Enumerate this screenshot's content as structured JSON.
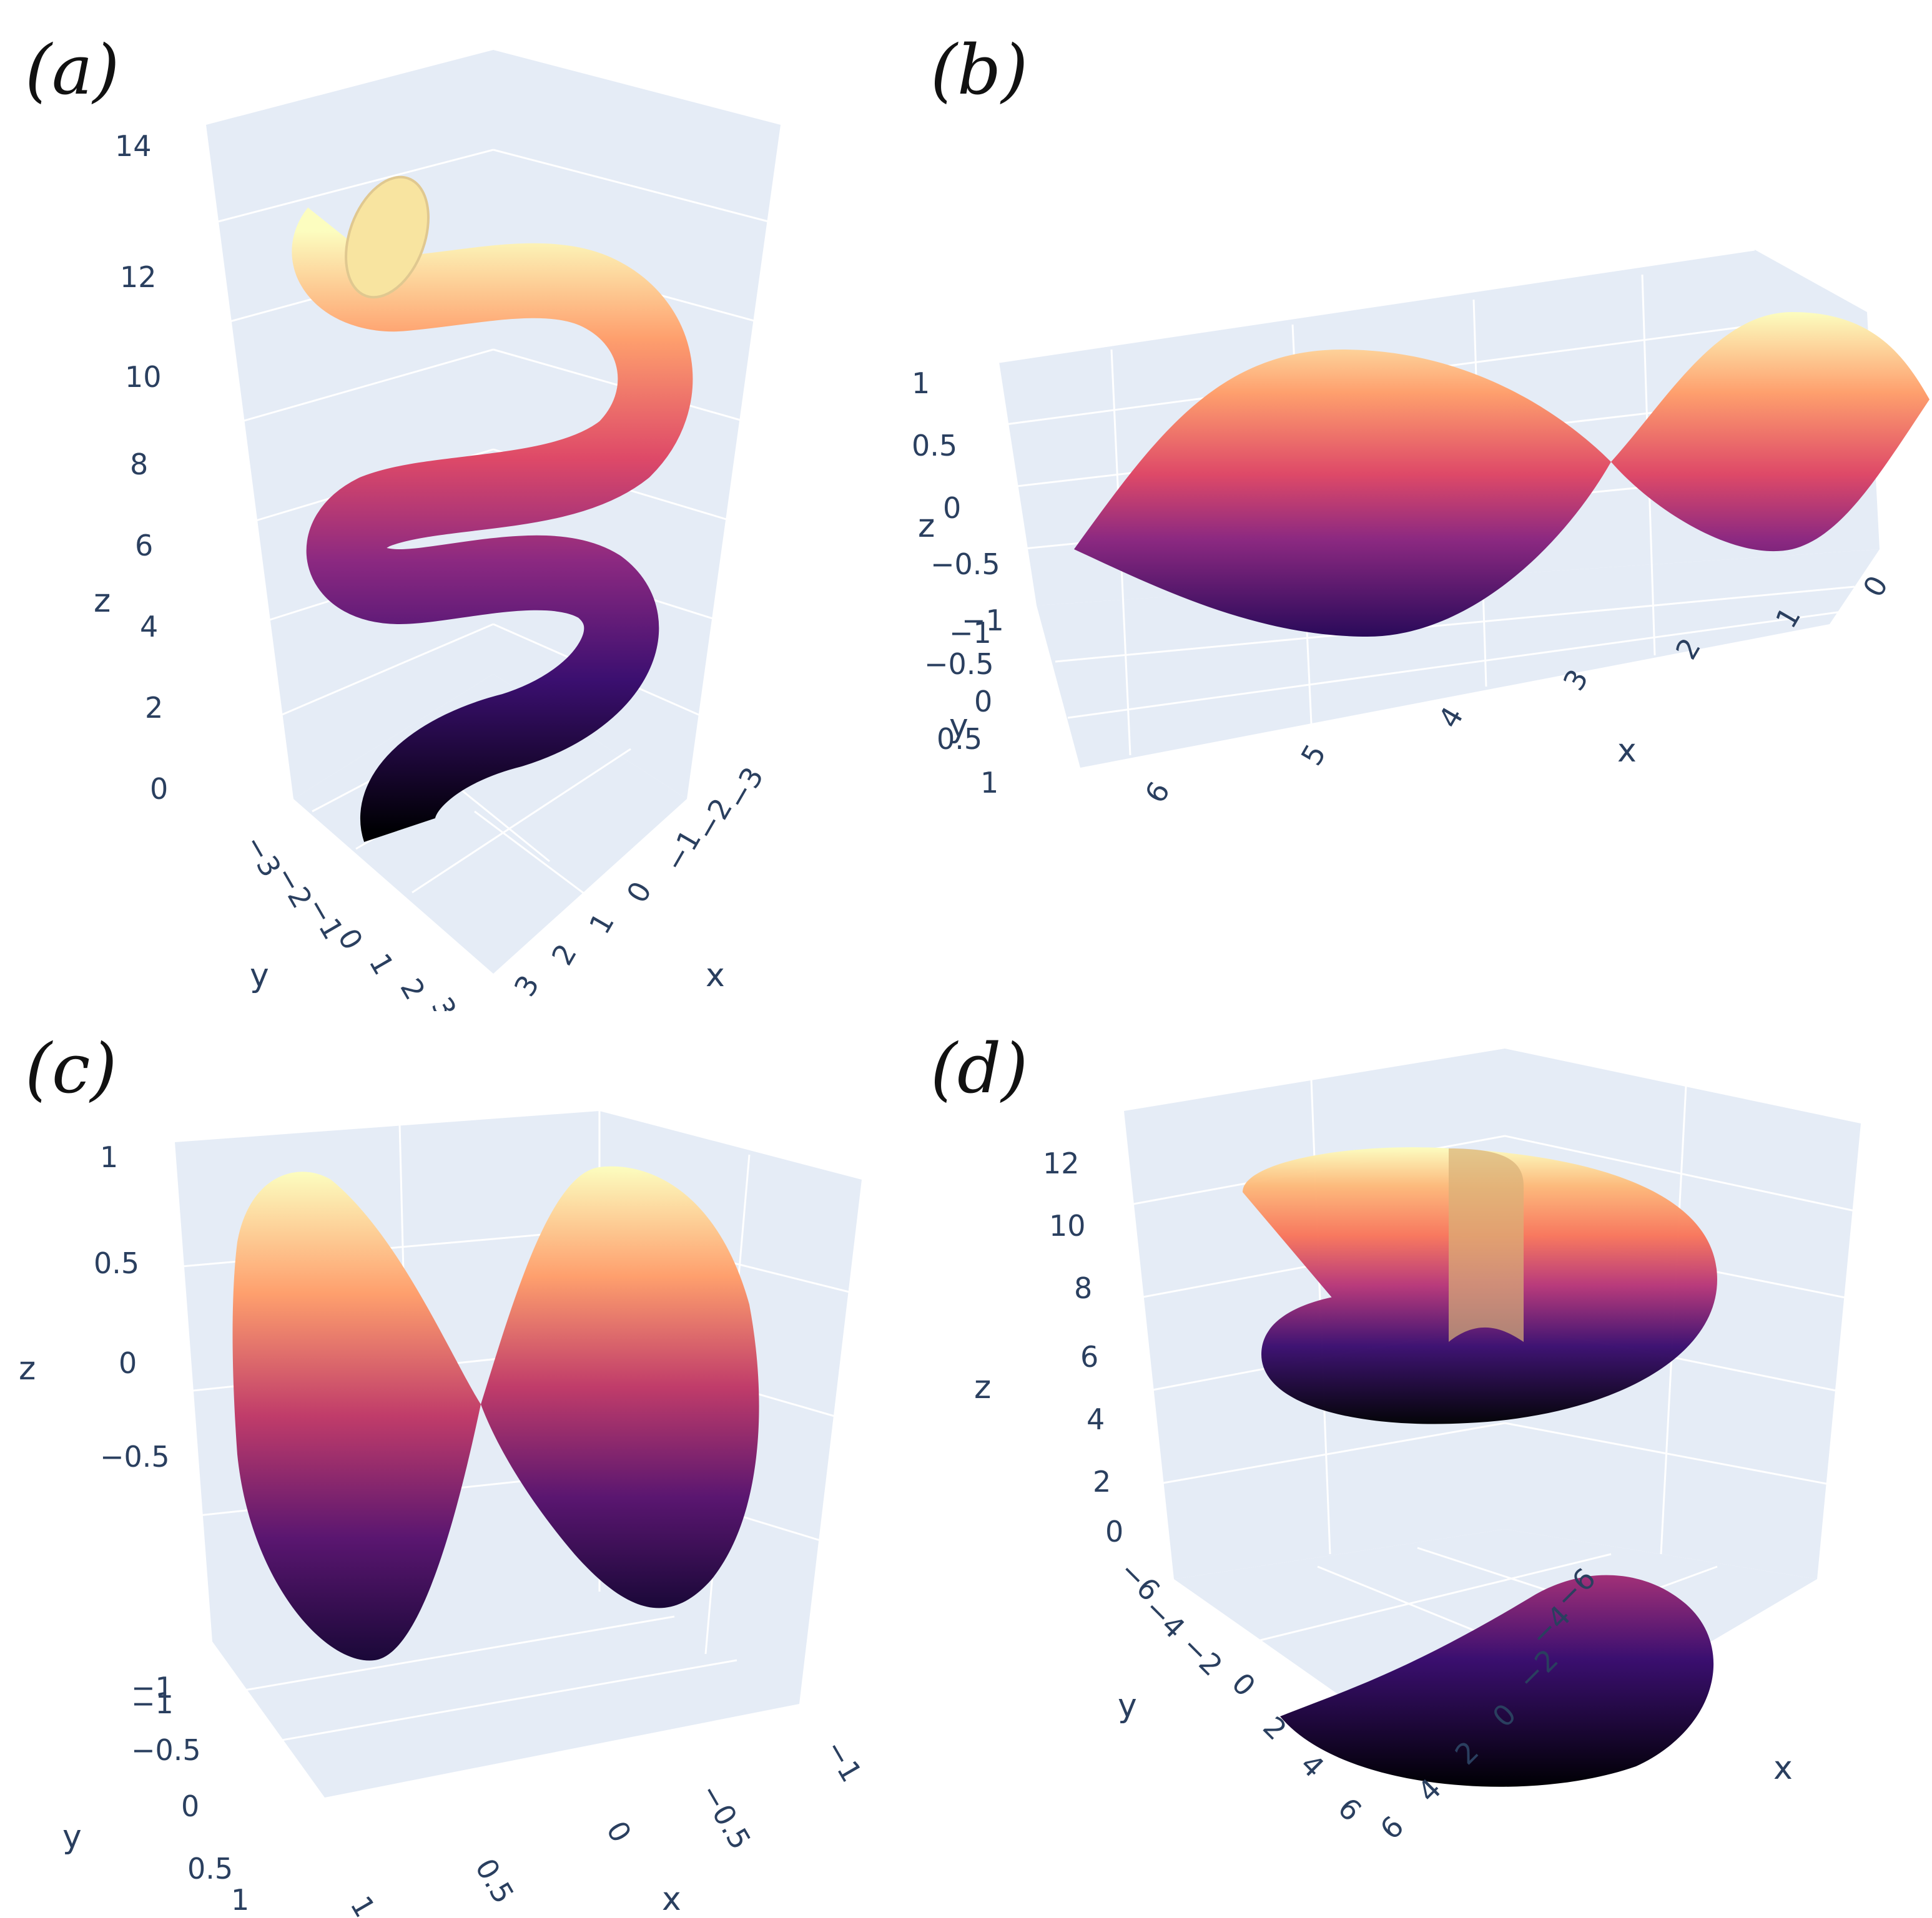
{
  "colors": {
    "pane": "#e5ecf6",
    "grid": "#ffffff",
    "tick": "#2a3f5f",
    "colorscale": "magma",
    "stops": [
      "#000004",
      "#3b0f70",
      "#8c2981",
      "#de4968",
      "#fe9f6d",
      "#fcfdbf"
    ]
  },
  "chart_data": [
    {
      "panel_label": "(a)",
      "type": "surface",
      "shape": "helical tube",
      "axes": {
        "x": {
          "label": "x",
          "ticks": [
            "3",
            "2",
            "1",
            "0",
            "−1",
            "−2",
            "−3"
          ]
        },
        "y": {
          "label": "y",
          "ticks": [
            "−3",
            "−2",
            "−1",
            "0",
            "1",
            "2",
            "3"
          ]
        },
        "z": {
          "label": "z",
          "ticks": [
            "0",
            "2",
            "4",
            "6",
            "8",
            "10",
            "12",
            "14"
          ],
          "range": [
            0,
            14
          ]
        }
      }
    },
    {
      "panel_label": "(b)",
      "type": "surface",
      "shape": "two lobes pinched at x ≈ 3.14",
      "axes": {
        "x": {
          "label": "x",
          "ticks": [
            "6",
            "5",
            "4",
            "3",
            "2",
            "1",
            "0"
          ],
          "range": [
            0,
            6.28
          ]
        },
        "y": {
          "label": "y",
          "ticks": [
            "−1",
            "−0.5",
            "0",
            "0.5",
            "1"
          ],
          "range": [
            -1,
            1
          ]
        },
        "z": {
          "label": "z",
          "ticks": [
            "−1",
            "−0.5",
            "0",
            "0.5",
            "1"
          ],
          "range": [
            -1,
            1
          ]
        }
      }
    },
    {
      "panel_label": "(c)",
      "type": "surface",
      "shape": "two lobes pinched at origin",
      "axes": {
        "x": {
          "label": "x",
          "ticks": [
            "1",
            "0.5",
            "0",
            "−0.5",
            "−1"
          ],
          "range": [
            -1,
            1
          ]
        },
        "y": {
          "label": "y",
          "ticks": [
            "−1",
            "−0.5",
            "0",
            "0.5",
            "1"
          ],
          "range": [
            -1,
            1
          ]
        },
        "z": {
          "label": "z",
          "ticks": [
            "−1",
            "−0.5",
            "0",
            "0.5",
            "1"
          ],
          "range": [
            -1,
            1
          ]
        }
      }
    },
    {
      "panel_label": "(d)",
      "type": "surface",
      "shape": "helicoid",
      "axes": {
        "x": {
          "label": "x",
          "ticks": [
            "6",
            "4",
            "2",
            "0",
            "−2",
            "−4",
            "−6"
          ],
          "range": [
            -6,
            6
          ]
        },
        "y": {
          "label": "y",
          "ticks": [
            "−6",
            "−4",
            "−2",
            "0",
            "2",
            "4",
            "6"
          ],
          "range": [
            -6,
            6
          ]
        },
        "z": {
          "label": "z",
          "ticks": [
            "0",
            "2",
            "4",
            "6",
            "8",
            "10",
            "12"
          ],
          "range": [
            0,
            12
          ]
        }
      }
    }
  ]
}
